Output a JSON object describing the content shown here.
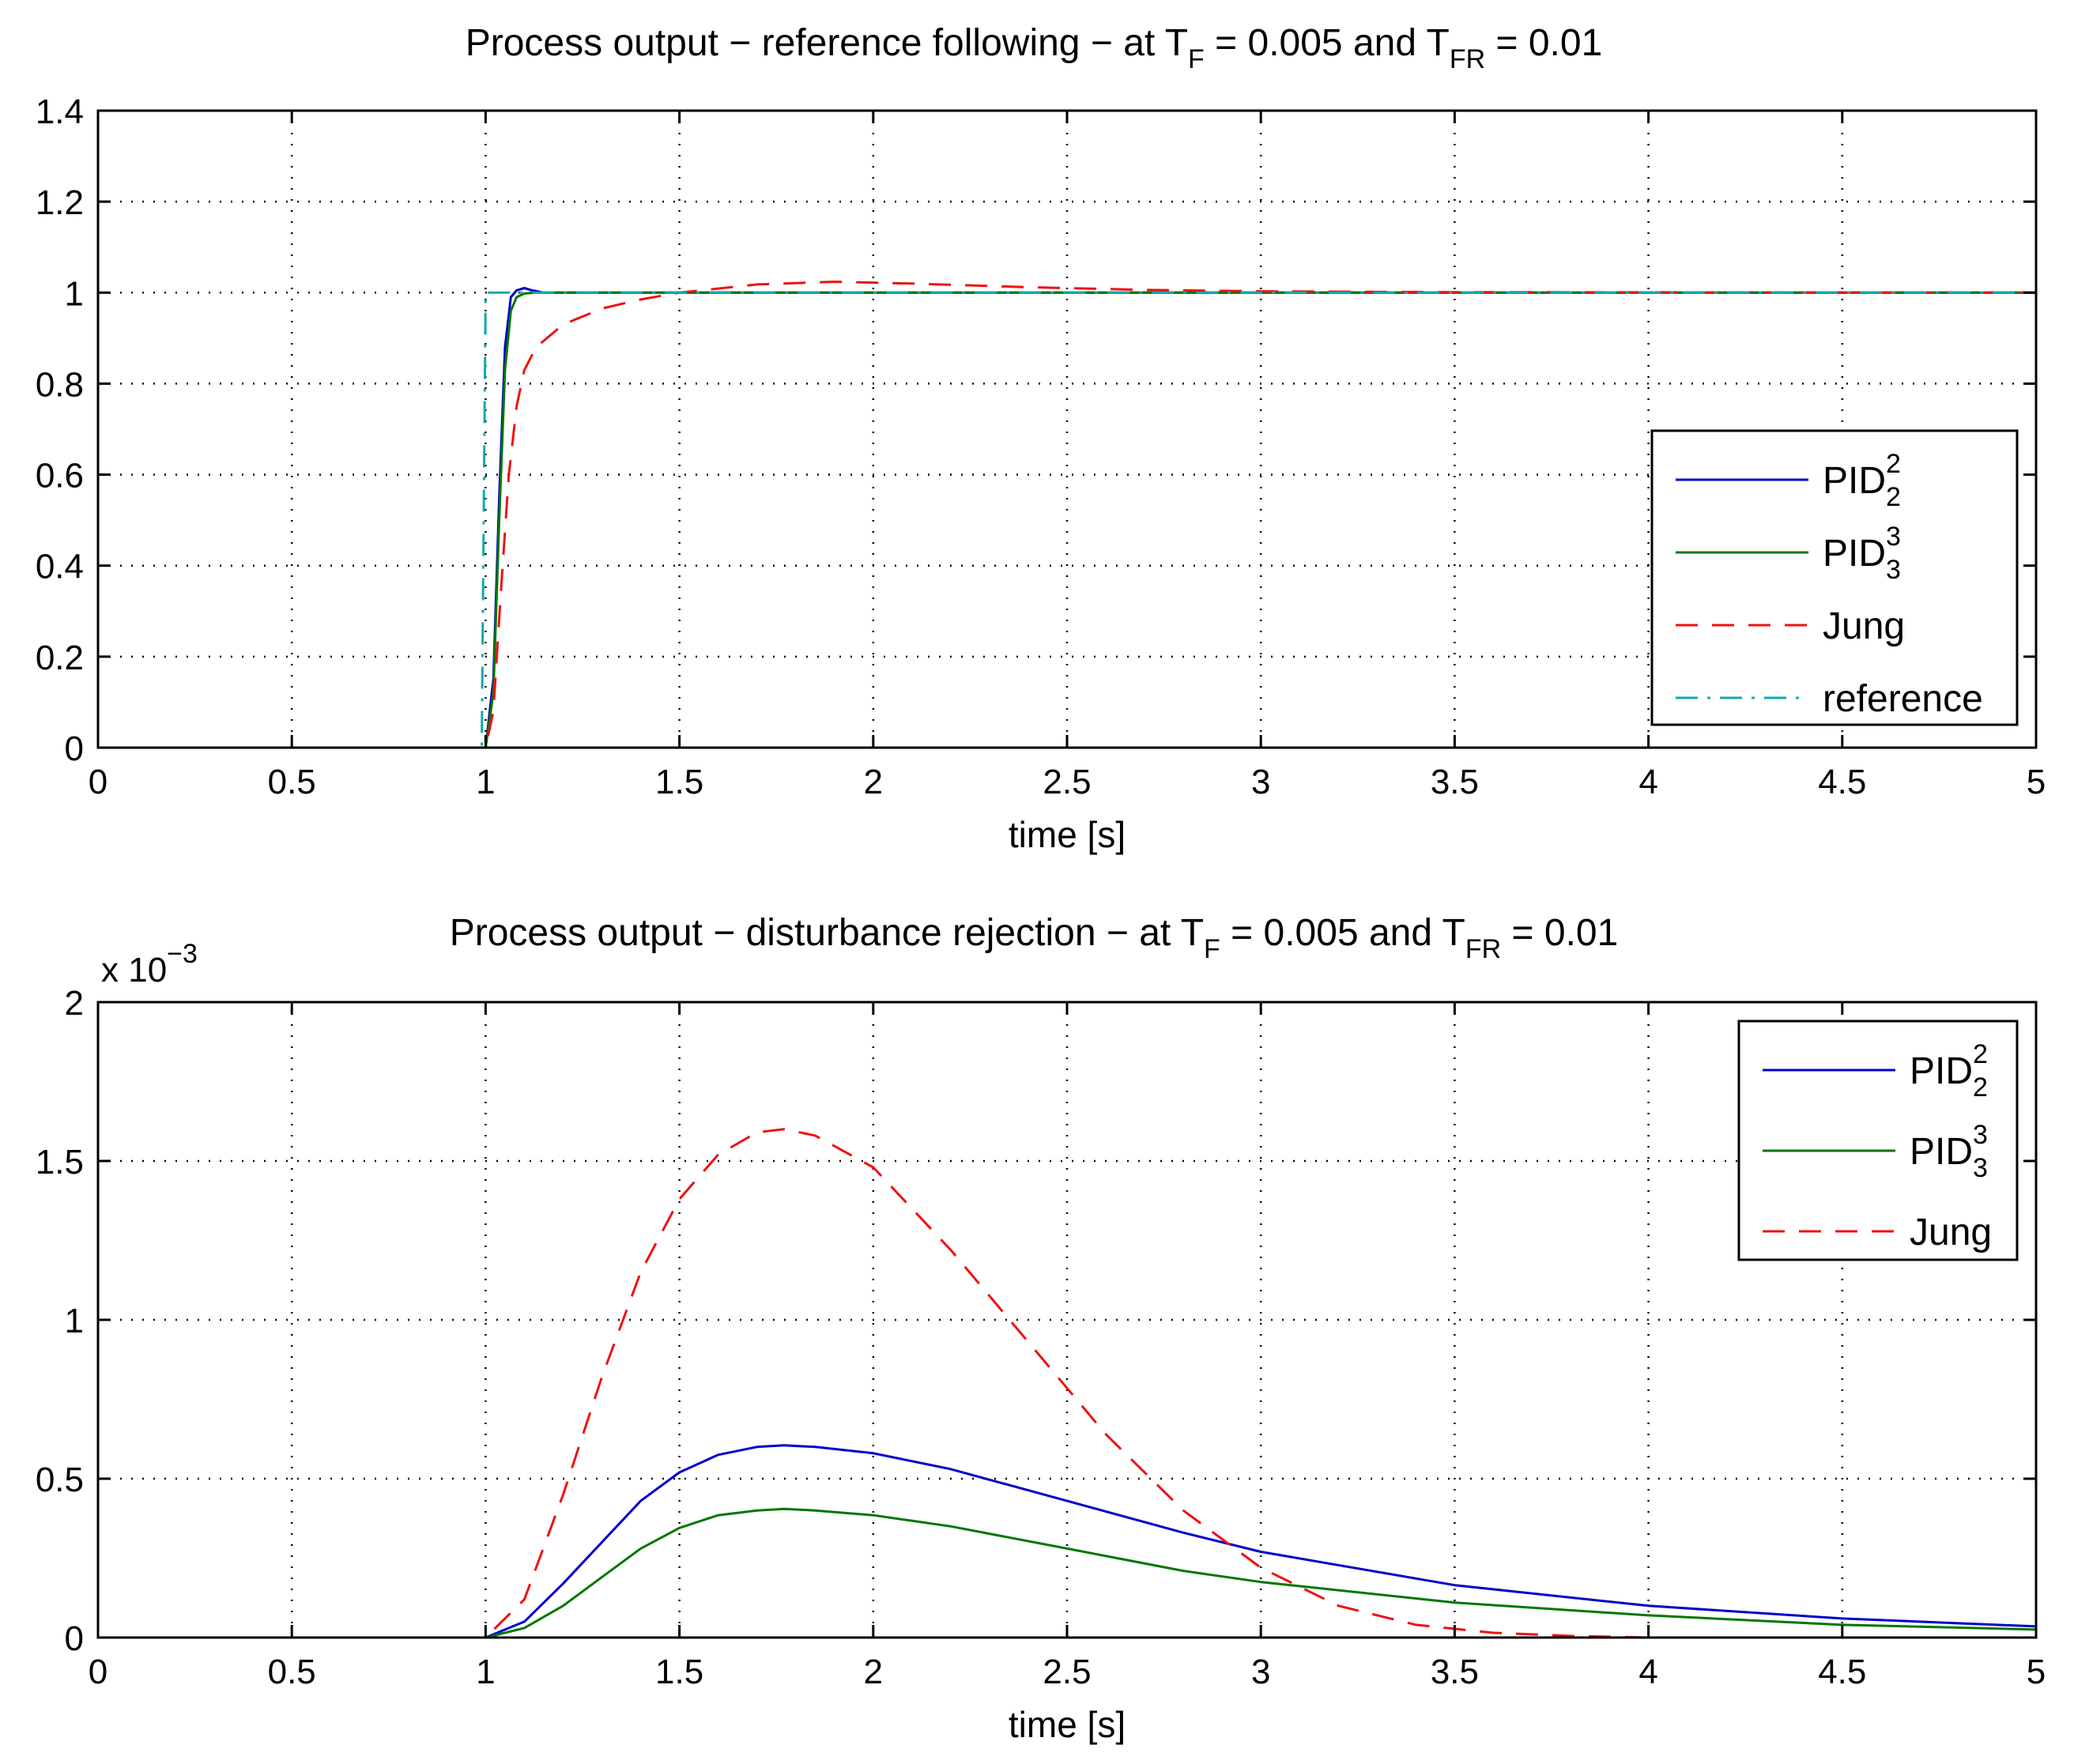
{
  "chart_data": [
    {
      "type": "line",
      "id": "top",
      "title": "Process output − reference following − at T_F = 0.005 and T_FR = 0.01",
      "title_parts": {
        "prefix": "Process output − reference following − at T",
        "sub1": "F",
        "mid": " = 0.005 and T",
        "sub2": "FR",
        "suffix": " = 0.01"
      },
      "xlabel": "time [s]",
      "ylabel": "",
      "xlim": [
        0,
        5
      ],
      "ylim": [
        0,
        1.4
      ],
      "xticks": [
        0,
        0.5,
        1,
        1.5,
        2,
        2.5,
        3,
        3.5,
        4,
        4.5,
        5
      ],
      "xtick_labels": [
        "0",
        "0.5",
        "1",
        "1.5",
        "2",
        "2.5",
        "3",
        "3.5",
        "4",
        "4.5",
        "5"
      ],
      "yticks": [
        0,
        0.2,
        0.4,
        0.6,
        0.8,
        1,
        1.2,
        1.4
      ],
      "ytick_labels": [
        "0",
        "0.2",
        "0.4",
        "0.6",
        "0.8",
        "1",
        "1.2",
        "1.4"
      ],
      "grid": true,
      "legend_position": "center-right",
      "series": [
        {
          "name": "PID_2^2",
          "label_base": "PID",
          "label_sup": "2",
          "label_sub": "2",
          "color": "#0000cc",
          "style": "solid",
          "x": [
            0,
            1.0,
            1.02,
            1.035,
            1.05,
            1.065,
            1.08,
            1.1,
            1.12,
            1.15,
            5
          ],
          "y": [
            0,
            0,
            0.15,
            0.55,
            0.88,
            0.99,
            1.005,
            1.01,
            1.005,
            1.0,
            1.0
          ]
        },
        {
          "name": "PID_3^3",
          "label_base": "PID",
          "label_sup": "3",
          "label_sub": "3",
          "color": "#007700",
          "style": "solid",
          "x": [
            0,
            1.0,
            1.02,
            1.035,
            1.05,
            1.065,
            1.08,
            1.1,
            1.13,
            5
          ],
          "y": [
            0,
            0,
            0.12,
            0.5,
            0.83,
            0.96,
            0.99,
            0.998,
            1.0,
            1.0
          ]
        },
        {
          "name": "Jung",
          "label_base": "Jung",
          "label_sup": "",
          "label_sub": "",
          "color": "#ee1111",
          "style": "dashed",
          "x": [
            0,
            1.0,
            1.02,
            1.04,
            1.06,
            1.08,
            1.1,
            1.13,
            1.2,
            1.3,
            1.4,
            1.5,
            1.7,
            1.9,
            2.1,
            2.4,
            2.7,
            3.0,
            3.5,
            5
          ],
          "y": [
            0,
            0,
            0.08,
            0.35,
            0.6,
            0.75,
            0.83,
            0.88,
            0.93,
            0.965,
            0.985,
            1.0,
            1.018,
            1.024,
            1.02,
            1.012,
            1.006,
            1.003,
            1.001,
            1.0
          ]
        },
        {
          "name": "reference",
          "label_base": "reference",
          "label_sup": "",
          "label_sub": "",
          "color": "#11aaaa",
          "style": "dashdot",
          "x": [
            0,
            0.99,
            1.0,
            5
          ],
          "y": [
            0,
            0,
            1,
            1
          ]
        }
      ]
    },
    {
      "type": "line",
      "id": "bottom",
      "title": "Process output − disturbance rejection − at T_F = 0.005 and T_FR = 0.01",
      "title_parts": {
        "prefix": "Process output − disturbance rejection − at T",
        "sub1": "F",
        "mid": " = 0.005 and T",
        "sub2": "FR",
        "suffix": " = 0.01"
      },
      "xlabel": "time [s]",
      "ylabel": "",
      "exponent_label": {
        "base": "x 10",
        "exp": "−3"
      },
      "xlim": [
        0,
        5
      ],
      "ylim": [
        0,
        2
      ],
      "xticks": [
        0,
        0.5,
        1,
        1.5,
        2,
        2.5,
        3,
        3.5,
        4,
        4.5,
        5
      ],
      "xtick_labels": [
        "0",
        "0.5",
        "1",
        "1.5",
        "2",
        "2.5",
        "3",
        "3.5",
        "4",
        "4.5",
        "5"
      ],
      "yticks": [
        0,
        0.5,
        1,
        1.5,
        2
      ],
      "ytick_labels": [
        "0",
        "0.5",
        "1",
        "1.5",
        "2"
      ],
      "grid": true,
      "legend_position": "top-right",
      "series": [
        {
          "name": "PID_2^2",
          "label_base": "PID",
          "label_sup": "2",
          "label_sub": "2",
          "color": "#0000cc",
          "style": "solid",
          "x": [
            0,
            1.0,
            1.1,
            1.2,
            1.3,
            1.4,
            1.5,
            1.6,
            1.7,
            1.77,
            1.85,
            2.0,
            2.2,
            2.5,
            2.8,
            3.0,
            3.5,
            4.0,
            4.5,
            5.0
          ],
          "y": [
            0,
            0,
            0.05,
            0.17,
            0.3,
            0.43,
            0.52,
            0.575,
            0.6,
            0.605,
            0.6,
            0.58,
            0.53,
            0.43,
            0.33,
            0.27,
            0.165,
            0.1,
            0.06,
            0.035
          ]
        },
        {
          "name": "PID_3^3",
          "label_base": "PID",
          "label_sup": "3",
          "label_sub": "3",
          "color": "#007700",
          "style": "solid",
          "x": [
            0,
            1.0,
            1.1,
            1.2,
            1.3,
            1.4,
            1.5,
            1.6,
            1.7,
            1.77,
            1.85,
            2.0,
            2.2,
            2.5,
            2.8,
            3.0,
            3.5,
            4.0,
            4.5,
            5.0
          ],
          "y": [
            0,
            0,
            0.03,
            0.1,
            0.19,
            0.28,
            0.345,
            0.385,
            0.4,
            0.405,
            0.4,
            0.385,
            0.35,
            0.28,
            0.21,
            0.175,
            0.11,
            0.07,
            0.04,
            0.025
          ]
        },
        {
          "name": "Jung",
          "label_base": "Jung",
          "label_sup": "",
          "label_sub": "",
          "color": "#ee1111",
          "style": "dashed",
          "x": [
            0,
            1.0,
            1.1,
            1.2,
            1.3,
            1.4,
            1.5,
            1.6,
            1.7,
            1.77,
            1.85,
            2.0,
            2.2,
            2.4,
            2.6,
            2.8,
            3.0,
            3.2,
            3.4,
            3.6,
            3.8,
            4.0,
            5.0
          ],
          "y": [
            0,
            0,
            0.12,
            0.45,
            0.82,
            1.15,
            1.38,
            1.52,
            1.59,
            1.6,
            1.58,
            1.48,
            1.22,
            0.93,
            0.64,
            0.4,
            0.22,
            0.1,
            0.04,
            0.015,
            0.005,
            0.0,
            0.0
          ]
        }
      ]
    }
  ]
}
